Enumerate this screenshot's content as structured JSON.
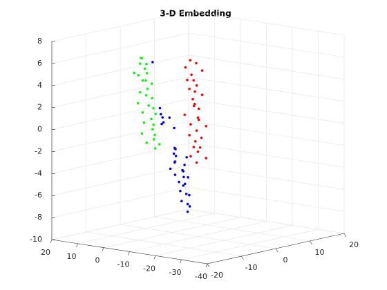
{
  "chart_data": {
    "type": "scatter3d",
    "title": "3-D Embedding",
    "xlim": [
      -40,
      20
    ],
    "xticks": [
      -40,
      -30,
      -20,
      -10,
      0,
      10,
      20
    ],
    "ylim": [
      -20,
      20
    ],
    "yticks": [
      -20,
      -10,
      0,
      10,
      20
    ],
    "zlim": [
      -10,
      8
    ],
    "zticks": [
      -10,
      -8,
      -6,
      -4,
      -2,
      0,
      2,
      4,
      6,
      8
    ],
    "grid": true,
    "series": [
      {
        "color": "#00ff00",
        "x": [
          12,
          13,
          11,
          12.5,
          10.5,
          12,
          11,
          13,
          10,
          11.5,
          10.5,
          9.5,
          11,
          10,
          9,
          10.5,
          9,
          8.5,
          10,
          9,
          8,
          9.5,
          8.5,
          7.5,
          9,
          8,
          7,
          8.5,
          7.5,
          6.5
        ],
        "y": [
          0,
          1,
          -1,
          2,
          0,
          -2,
          1,
          0,
          -1,
          1,
          2,
          0,
          -1,
          0,
          1,
          -2,
          0,
          1,
          -1,
          2,
          0,
          -1,
          1,
          0,
          -2,
          1,
          0,
          -1,
          2,
          0
        ],
        "z": [
          5.4,
          5.3,
          5.0,
          4.7,
          4.5,
          4.2,
          4.0,
          3.8,
          3.5,
          3.3,
          3.0,
          2.7,
          2.4,
          2.1,
          1.8,
          1.5,
          1.2,
          0.9,
          0.6,
          0.3,
          0.0,
          -0.3,
          -0.6,
          -0.9,
          -1.2,
          -1.5,
          -1.8,
          -2.1,
          -2.4,
          -2.6
        ]
      },
      {
        "color": "#ff0000",
        "x": [
          -7,
          -8,
          -6.5,
          -9,
          -7.5,
          -8.5,
          -7,
          -9.5,
          -8,
          -7.5,
          -9,
          -8,
          -10,
          -8.5,
          -9,
          -7.5,
          -10,
          -9,
          -8.5,
          -10.5,
          -9.5,
          -8,
          -10,
          -9,
          -11,
          -9.5,
          -10,
          -8.5,
          -10.5,
          -9.5
        ],
        "y": [
          0,
          1,
          -1,
          2,
          0,
          -2,
          1,
          0,
          -1,
          1,
          2,
          0,
          -1,
          0,
          1,
          -2,
          0,
          1,
          -1,
          2,
          0,
          -1,
          1,
          0,
          -2,
          1,
          0,
          -1,
          2,
          0
        ],
        "z": [
          5.9,
          5.6,
          5.3,
          4.9,
          4.6,
          4.3,
          4.0,
          3.7,
          3.4,
          3.0,
          2.7,
          2.4,
          2.1,
          1.8,
          1.5,
          1.1,
          0.8,
          0.5,
          0.2,
          -0.1,
          -0.4,
          -0.8,
          -1.1,
          -1.4,
          -1.7,
          -2.0,
          -2.3,
          -2.7,
          -3.0,
          -3.3
        ]
      },
      {
        "color": "#0000ff",
        "x": [
          7.5,
          6,
          3,
          1,
          5,
          2,
          4,
          0.5,
          -1,
          0,
          -2,
          -1.5,
          -3,
          -2.5,
          -1,
          -3.5,
          -2,
          -4,
          -3,
          -2.5,
          -4.5,
          -3.5,
          -4,
          -5,
          -3,
          -4.5,
          -5.5,
          -4,
          -5,
          -6,
          -5.5,
          -6
        ],
        "y": [
          0,
          1,
          -1,
          0,
          1,
          -1,
          0,
          1,
          0,
          1,
          -1,
          0,
          2,
          -1,
          0,
          1,
          -2,
          0,
          1,
          -1,
          0,
          2,
          -1,
          0,
          1,
          -1,
          0,
          2,
          -1,
          0,
          1,
          0
        ],
        "z": [
          5.2,
          1.0,
          0.7,
          0.4,
          0.2,
          0.0,
          -0.3,
          -0.6,
          -2.3,
          -2.5,
          -2.7,
          -3.0,
          -3.2,
          -3.4,
          -3.6,
          -3.8,
          -4.0,
          -4.2,
          -4.4,
          -4.6,
          -4.8,
          -5.0,
          -5.2,
          -5.4,
          -5.7,
          -6.0,
          -6.3,
          -6.6,
          -6.9,
          -7.2,
          -7.5,
          -7.9
        ]
      }
    ]
  }
}
